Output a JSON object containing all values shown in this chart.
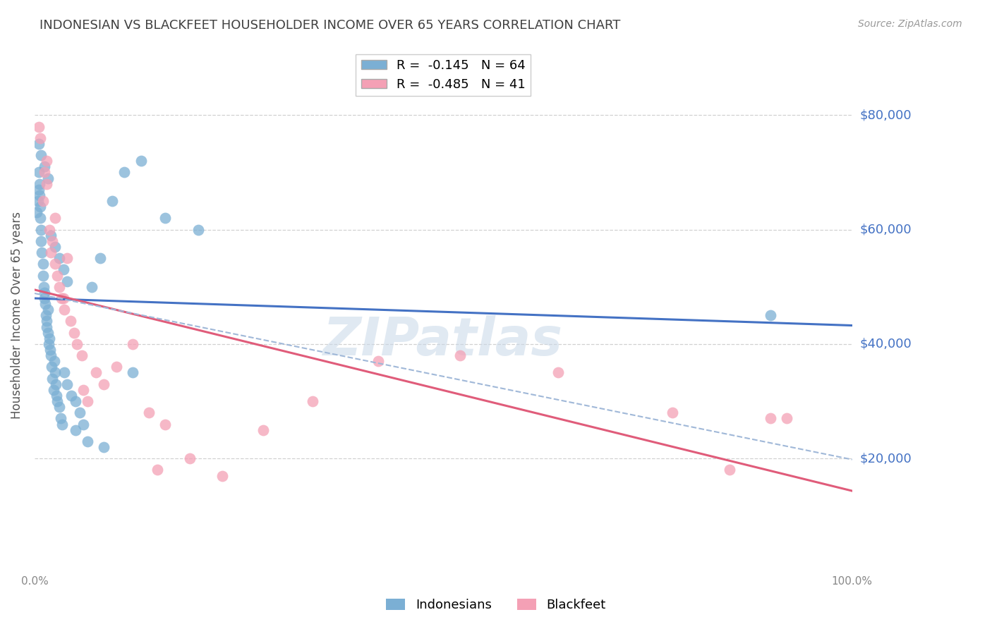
{
  "title": "INDONESIAN VS BLACKFEET HOUSEHOLDER INCOME OVER 65 YEARS CORRELATION CHART",
  "source": "Source: ZipAtlas.com",
  "ylabel": "Householder Income Over 65 years",
  "watermark": "ZIPatlas",
  "ytick_labels": [
    "$20,000",
    "$40,000",
    "$60,000",
    "$80,000"
  ],
  "ytick_values": [
    20000,
    40000,
    60000,
    80000
  ],
  "ylim": [
    0,
    90000
  ],
  "xlim": [
    0,
    1.0
  ],
  "indonesian_color": "#7bafd4",
  "blackfeet_color": "#f4a0b5",
  "trend_indonesian_color": "#4472c4",
  "trend_blackfeet_color": "#e05c7a",
  "trend_dashed_color": "#a0b8d8",
  "background_color": "#ffffff",
  "grid_color": "#cccccc",
  "title_color": "#404040",
  "ytick_color": "#4472c4",
  "indonesian_x": [
    0.003,
    0.004,
    0.005,
    0.005,
    0.006,
    0.006,
    0.007,
    0.007,
    0.008,
    0.008,
    0.009,
    0.01,
    0.01,
    0.011,
    0.012,
    0.012,
    0.013,
    0.014,
    0.015,
    0.015,
    0.016,
    0.016,
    0.017,
    0.018,
    0.019,
    0.02,
    0.021,
    0.022,
    0.023,
    0.024,
    0.025,
    0.026,
    0.027,
    0.028,
    0.03,
    0.032,
    0.034,
    0.036,
    0.04,
    0.045,
    0.05,
    0.055,
    0.06,
    0.07,
    0.08,
    0.095,
    0.11,
    0.13,
    0.16,
    0.2,
    0.005,
    0.008,
    0.012,
    0.016,
    0.02,
    0.025,
    0.03,
    0.035,
    0.04,
    0.05,
    0.065,
    0.085,
    0.12,
    0.9
  ],
  "indonesian_y": [
    63000,
    65000,
    67000,
    70000,
    68000,
    66000,
    62000,
    64000,
    60000,
    58000,
    56000,
    54000,
    52000,
    50000,
    48000,
    49000,
    47000,
    45000,
    43000,
    44000,
    46000,
    42000,
    40000,
    41000,
    39000,
    38000,
    36000,
    34000,
    32000,
    37000,
    35000,
    33000,
    31000,
    30000,
    29000,
    27000,
    26000,
    35000,
    33000,
    31000,
    30000,
    28000,
    26000,
    50000,
    55000,
    65000,
    70000,
    72000,
    62000,
    60000,
    75000,
    73000,
    71000,
    69000,
    59000,
    57000,
    55000,
    53000,
    51000,
    25000,
    23000,
    22000,
    35000,
    45000
  ],
  "blackfeet_x": [
    0.005,
    0.007,
    0.01,
    0.012,
    0.015,
    0.018,
    0.02,
    0.022,
    0.025,
    0.028,
    0.03,
    0.033,
    0.036,
    0.04,
    0.044,
    0.048,
    0.052,
    0.058,
    0.065,
    0.075,
    0.085,
    0.1,
    0.12,
    0.14,
    0.16,
    0.19,
    0.23,
    0.28,
    0.34,
    0.42,
    0.52,
    0.64,
    0.78,
    0.9,
    0.92,
    0.015,
    0.025,
    0.035,
    0.06,
    0.15,
    0.85
  ],
  "blackfeet_y": [
    78000,
    76000,
    65000,
    70000,
    68000,
    60000,
    56000,
    58000,
    54000,
    52000,
    50000,
    48000,
    46000,
    55000,
    44000,
    42000,
    40000,
    38000,
    30000,
    35000,
    33000,
    36000,
    40000,
    28000,
    26000,
    20000,
    17000,
    25000,
    30000,
    37000,
    38000,
    35000,
    28000,
    27000,
    27000,
    72000,
    62000,
    48000,
    32000,
    18000,
    18000
  ]
}
